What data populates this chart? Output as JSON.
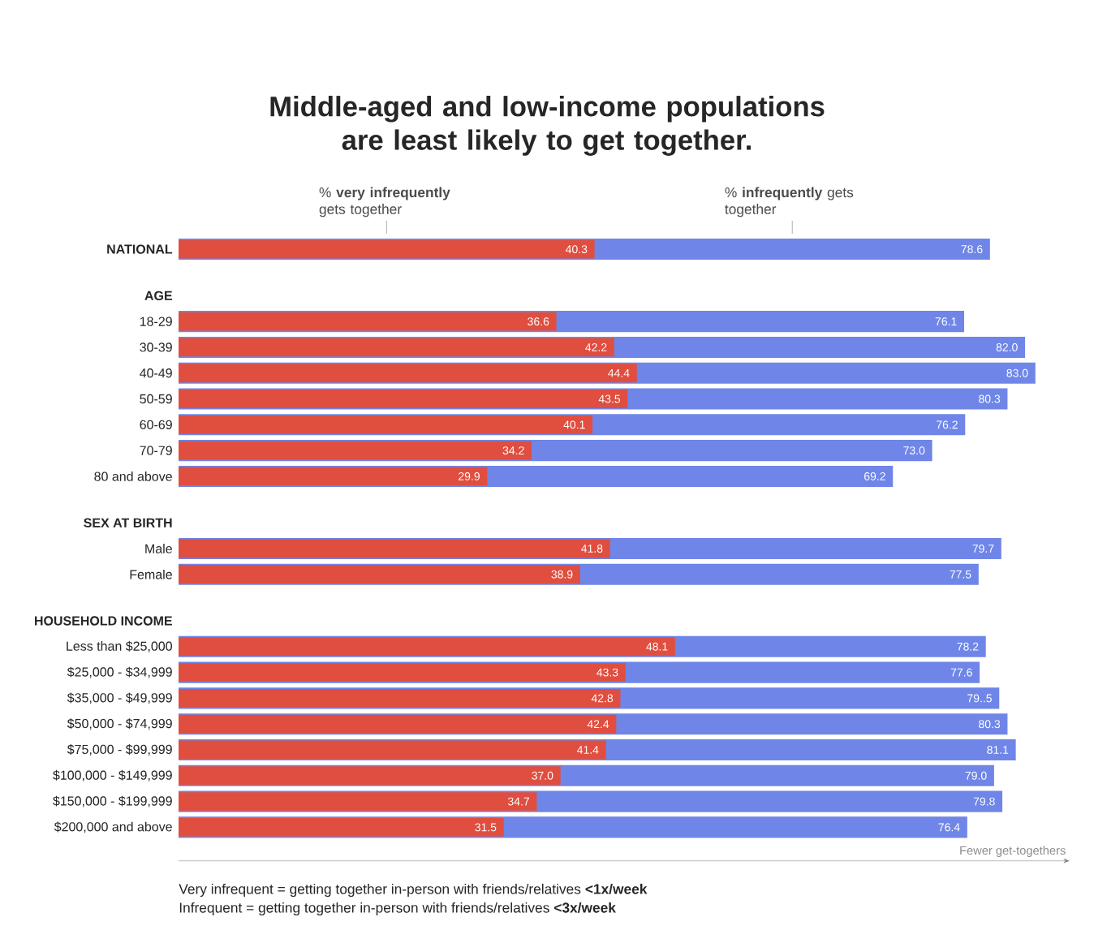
{
  "chart_data": {
    "type": "bar",
    "orientation": "horizontal",
    "title": "Middle-aged and low-income populations are least likely to get together.",
    "xlabel": "Fewer get-togethers",
    "categories": [
      "NATIONAL",
      "AGE",
      "18-29",
      "30-39",
      "40-49",
      "50-59",
      "60-69",
      "70-79",
      "80 and above",
      "SEX AT BIRTH",
      "Male",
      "Female",
      "HOUSEHOLD INCOME",
      "Less than $25,000",
      "$25,000 - $34,999",
      "$35,000 - $49,999",
      "$50,000 - $74,999",
      "$75,000 - $99,999",
      "$100,000 - $149,999",
      "$150,000 - $199,999",
      "$200,000 and above"
    ],
    "series": [
      {
        "name": "% **very infrequently** gets together",
        "color": "#e04e3f",
        "values": [
          40.3,
          null,
          36.6,
          42.2,
          44.4,
          43.5,
          40.1,
          34.2,
          29.9,
          null,
          41.8,
          38.9,
          null,
          48.1,
          43.3,
          42.8,
          42.4,
          41.4,
          37.0,
          34.7,
          31.5
        ],
        "value_labels": [
          "40.3",
          null,
          "36.6",
          "42.2",
          "44.4",
          "43.5",
          "40.1",
          "34.2",
          "29.9",
          null,
          "41.8",
          "38.9",
          null,
          "48.1",
          "43.3",
          "42.8",
          "42.4",
          "41.4",
          "37.0",
          "34.7",
          "31.5"
        ]
      },
      {
        "name": "% **infrequently** gets together",
        "color": "#6f86e8",
        "values": [
          78.6,
          null,
          76.1,
          82.0,
          83.0,
          80.3,
          76.2,
          73.0,
          69.2,
          null,
          79.7,
          77.5,
          null,
          78.2,
          77.6,
          79.5,
          80.3,
          81.1,
          79.0,
          79.8,
          76.4
        ],
        "value_labels": [
          "78.6",
          null,
          "76.1",
          "82.0",
          "83.0",
          "80.3",
          "76.2",
          "73.0",
          "69.2",
          null,
          "79.7",
          "77.5",
          null,
          "78.2",
          "77.6",
          "79..5",
          "80.3",
          "81.1",
          "79.0",
          "79.8",
          "76.4"
        ]
      }
    ],
    "annotations": [
      "Very infrequent = getting together in-person with friends/relatives **<1x/week**",
      "Infrequent = getting together in-person with friends/relatives **<3x/week**"
    ]
  }
}
